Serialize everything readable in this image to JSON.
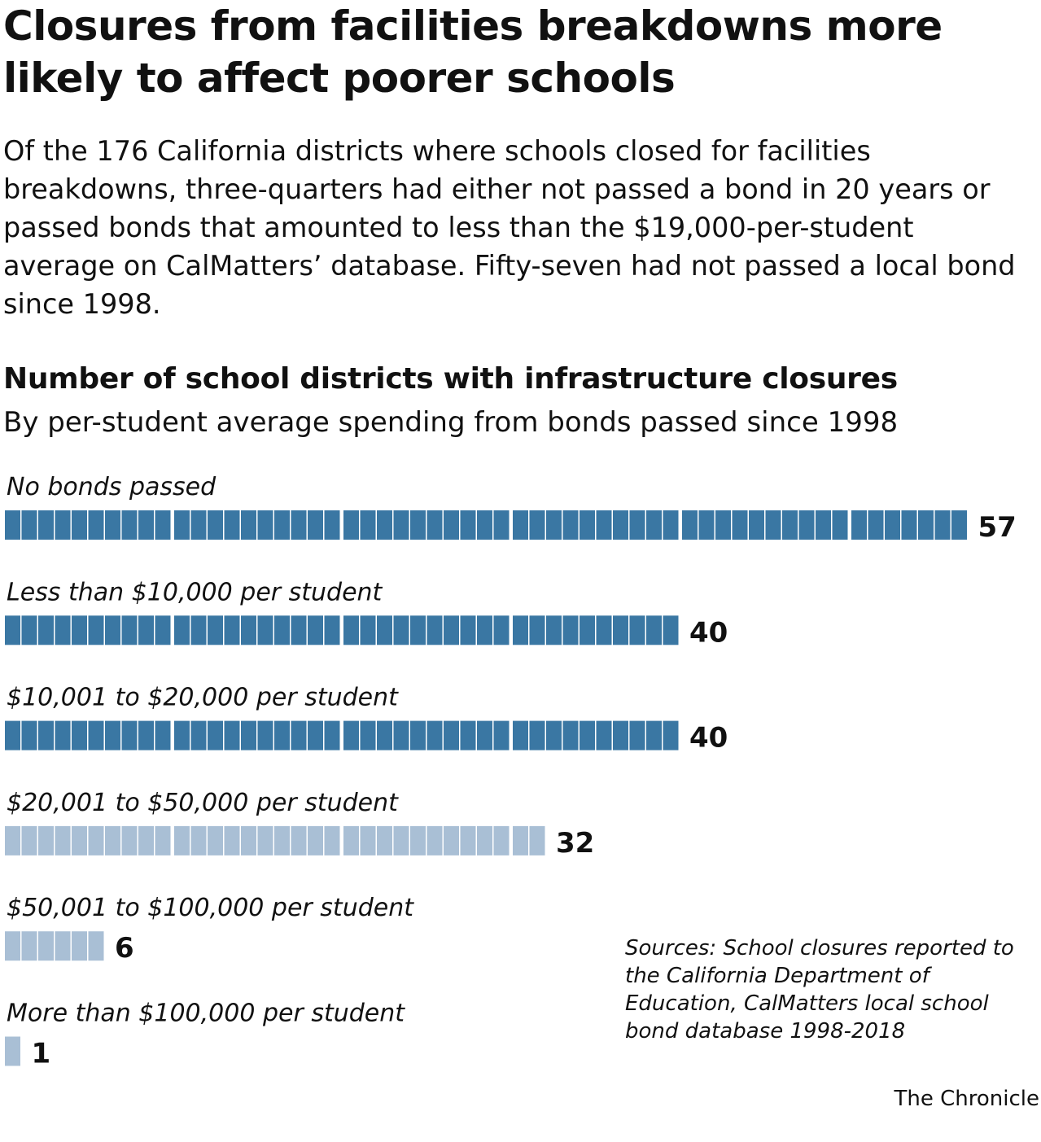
{
  "headline": "Closures from facilities breakdowns more likely to affect poorer schools",
  "dek": "Of the 176 California districts where schools closed for facilities breakdowns, three-quarters had either not passed a bond in 20 years or passed bonds that amounted to less than the $19,000-per-student average on CalMatters’ database. Fifty-seven had not passed a local bond since 1998.",
  "source": "Sources: School closures reported to the California Department of Education, CalMatters local school bond database 1998-2018",
  "credit": "The Chronicle",
  "colors": {
    "dark_bar": "#3a77a3",
    "light_bar": "#a9bfd5",
    "text": "#111111"
  },
  "chart_data": {
    "type": "bar",
    "orientation": "horizontal",
    "title": "Number of school districts with infrastructure closures",
    "subtitle": "By per-student average spending from bonds passed since 1998",
    "categories": [
      "No bonds passed",
      "Less than $10,000 per student",
      "$10,001 to $20,000 per student",
      "$20,001 to $50,000 per student",
      "$50,001 to $100,000 per student",
      "More than $100,000 per student"
    ],
    "values": [
      57,
      40,
      40,
      32,
      6,
      1
    ],
    "value_labels": [
      "57",
      "40",
      "40",
      "32",
      "6",
      "1"
    ],
    "highlight": [
      "dark",
      "dark",
      "dark",
      "light",
      "light",
      "light"
    ],
    "unit_style": "each district drawn as one segment, grouped by tens",
    "grid": false,
    "legend": "none"
  }
}
